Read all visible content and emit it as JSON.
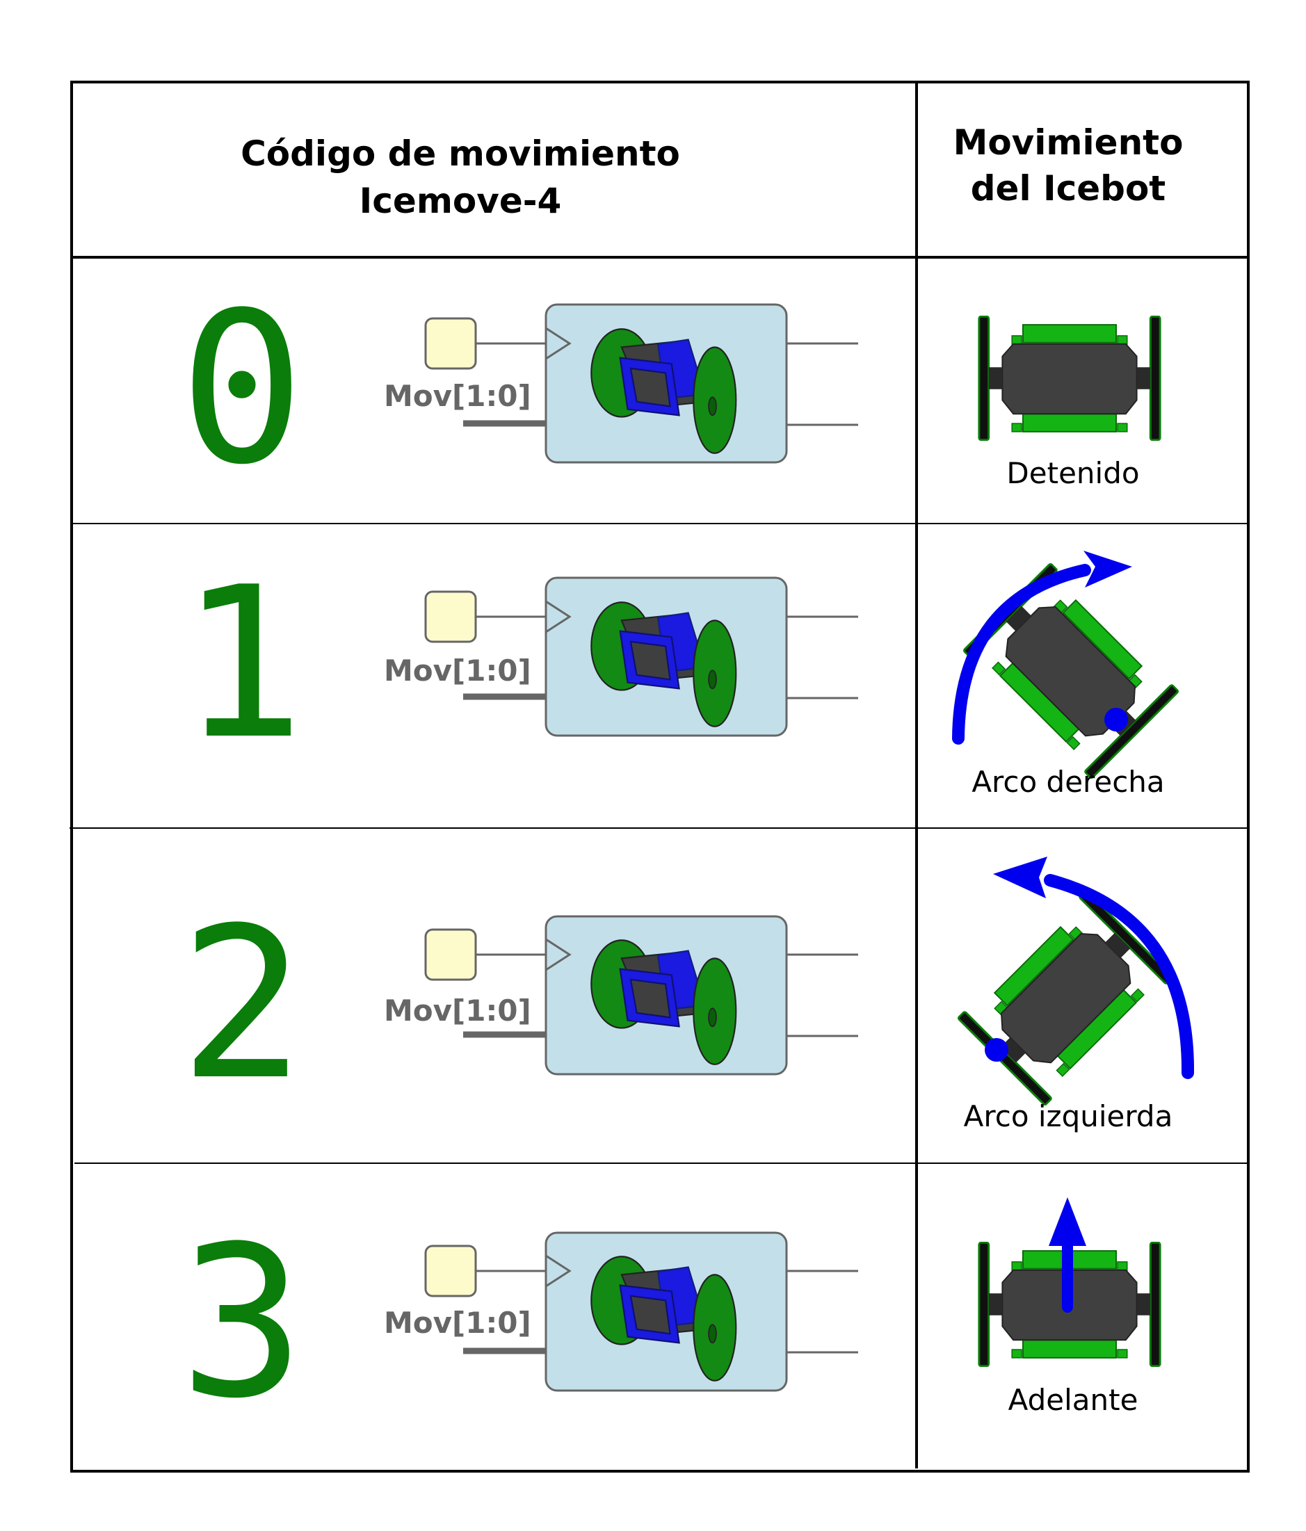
{
  "header": {
    "code_title_line1": "Código de movimiento",
    "code_title_line2": "Icemove-4",
    "move_title_line1": "Movimiento",
    "move_title_line2": "del Icebot"
  },
  "rows": [
    {
      "code": "0",
      "port_label": "Mov[1:0]",
      "caption": "Detenido",
      "motion": "stop"
    },
    {
      "code": "1",
      "port_label": "Mov[1:0]",
      "caption": "Arco derecha",
      "motion": "arc-right"
    },
    {
      "code": "2",
      "port_label": "Mov[1:0]",
      "caption": "Arco izquierda",
      "motion": "arc-left"
    },
    {
      "code": "3",
      "port_label": "Mov[1:0]",
      "caption": "Adelante",
      "motion": "forward"
    }
  ],
  "colors": {
    "code_number": "#0a7d0a",
    "block_fill": "#c3e0ea",
    "input_fill": "#fdfbcc",
    "arrow": "#0000ee",
    "robot_body": "#404040",
    "robot_green": "#14b414"
  },
  "icons": [
    "motor-block-icon",
    "icebot-robot-icon",
    "motion-arrow-icon"
  ]
}
